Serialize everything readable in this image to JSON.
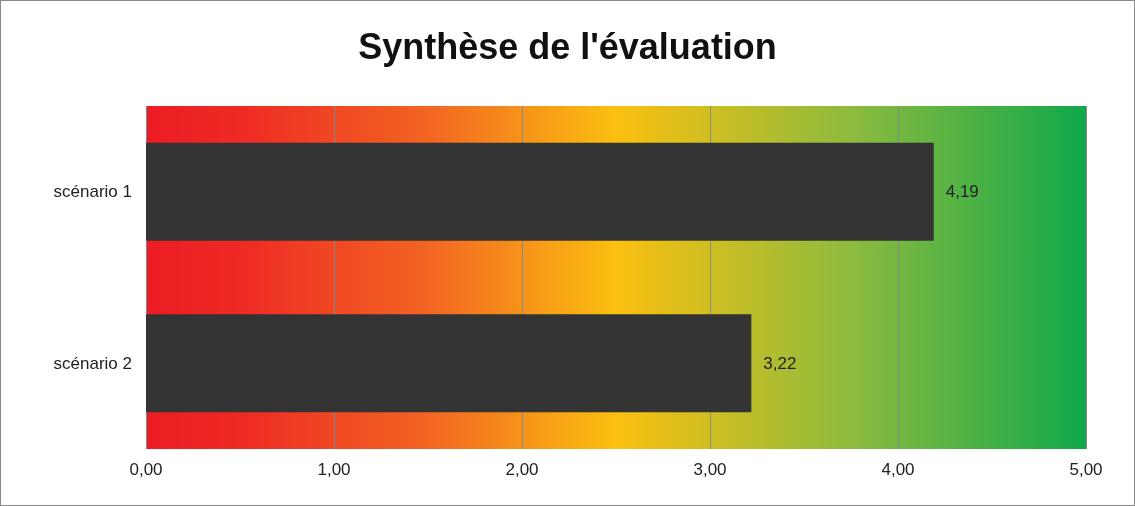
{
  "chart_data": {
    "type": "bar",
    "orientation": "horizontal",
    "title": "Synthèse de l'évaluation",
    "categories": [
      "scénario 1",
      "scénario 2"
    ],
    "values": [
      4.19,
      3.22
    ],
    "color": "#333333",
    "value_labels": [
      "4,19",
      "3,22"
    ],
    "xlim": [
      0,
      5
    ],
    "xticks": [
      {
        "value": 0,
        "label": "0,00"
      },
      {
        "value": 1,
        "label": "1,00"
      },
      {
        "value": 2,
        "label": "2,00"
      },
      {
        "value": 3,
        "label": "3,00"
      },
      {
        "value": 4,
        "label": "4,00"
      },
      {
        "value": 5,
        "label": "5,00"
      }
    ],
    "grid": "x"
  }
}
